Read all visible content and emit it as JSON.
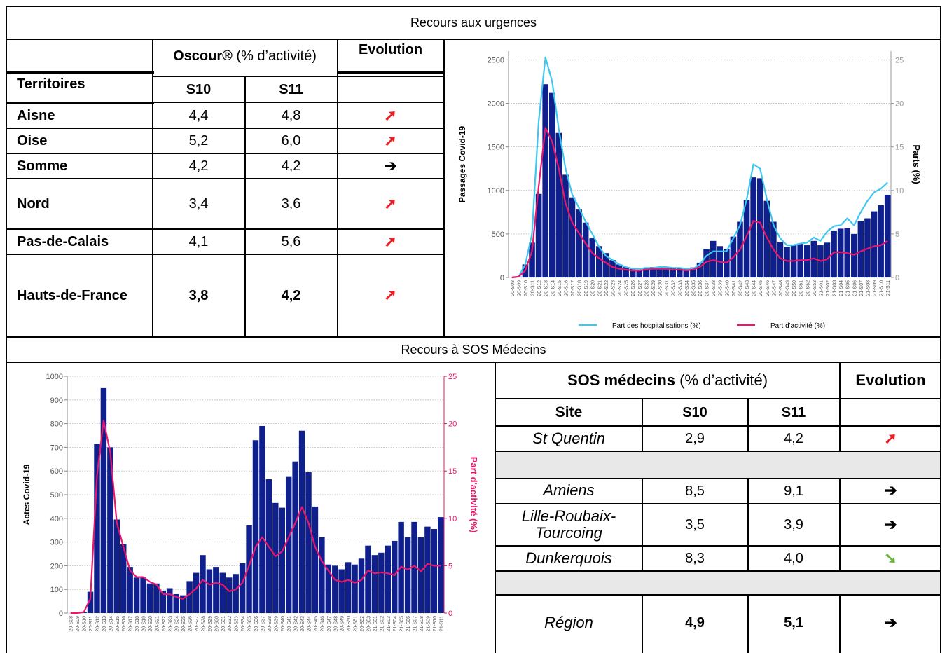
{
  "section_titles": {
    "urgences": "Recours aux urgences",
    "sos": "Recours à SOS Médecins"
  },
  "oscour_table": {
    "header_main_bold": "Oscour®",
    "header_main_rest": " (% d’activité)",
    "header_evolution": "Evolution",
    "col_territoires": "Territoires",
    "col_s10": "S10",
    "col_s11": "S11",
    "rows": [
      {
        "territoire": "Aisne",
        "s10": "4,4",
        "s11": "4,8",
        "evolution": "up",
        "evolution_symbol": "➚",
        "color": "#ee1c24"
      },
      {
        "territoire": "Oise",
        "s10": "5,2",
        "s11": "6,0",
        "evolution": "up",
        "evolution_symbol": "➚",
        "color": "#ee1c24"
      },
      {
        "territoire": "Somme",
        "s10": "4,2",
        "s11": "4,2",
        "evolution": "stable",
        "evolution_symbol": "➔",
        "color": "#000000"
      },
      {
        "territoire": "Nord",
        "s10": "3,4",
        "s11": "3,6",
        "evolution": "up",
        "evolution_symbol": "➚",
        "color": "#ee1c24"
      },
      {
        "territoire": "Pas-de-Calais",
        "s10": "4,1",
        "s11": "5,6",
        "evolution": "up",
        "evolution_symbol": "➚",
        "color": "#ee1c24"
      },
      {
        "territoire": "Hauts-de-France",
        "s10": "3,8",
        "s11": "4,2",
        "evolution": "up",
        "evolution_symbol": "➚",
        "color": "#ee1c24"
      }
    ]
  },
  "sos_table": {
    "header_main_bold": "SOS médecins",
    "header_main_rest": " (% d’activité)",
    "header_evolution": "Evolution",
    "col_site": "Site",
    "col_s10": "S10",
    "col_s11": "S11",
    "rows": [
      {
        "site": "St Quentin",
        "s10": "2,9",
        "s11": "4,2",
        "evolution": "up",
        "evolution_symbol": "➚",
        "color": "#ee1c24"
      },
      {
        "site": "Amiens",
        "s10": "8,5",
        "s11": "9,1",
        "evolution": "stable",
        "evolution_symbol": "➔",
        "color": "#000000"
      },
      {
        "site_line1": "Lille-Roubaix-",
        "site_line2": "Tourcoing",
        "s10": "3,5",
        "s11": "3,9",
        "evolution": "stable",
        "evolution_symbol": "➔",
        "color": "#000000"
      },
      {
        "site": "Dunkerquois",
        "s10": "8,3",
        "s11": "4,0",
        "evolution": "down",
        "evolution_symbol": "➘",
        "color": "#6db33f"
      },
      {
        "site": "Région",
        "s10": "4,9",
        "s11": "5,1",
        "evolution": "stable",
        "evolution_symbol": "➔",
        "color": "#000000"
      }
    ]
  },
  "colors": {
    "bar": "#0f1f8c",
    "line_hosp": "#3ec6f0",
    "line_activite": "#e8176b",
    "grid": "#b3b3b3"
  },
  "chart_data": [
    {
      "type": "bar",
      "id": "urgences",
      "ylabel": "Passages Covid-19",
      "y2label": "Parts (%)",
      "ylim": [
        0,
        2600
      ],
      "y2lim": [
        0,
        26
      ],
      "yticks": [
        0,
        500,
        1000,
        1500,
        2000,
        2500
      ],
      "y2ticks": [
        0,
        5,
        10,
        15,
        20,
        25
      ],
      "grid": true,
      "legend_position": "bottom",
      "categories": [
        "20-S08",
        "20-S09",
        "20-S10",
        "20-S11",
        "20-S12",
        "20-S13",
        "20-S14",
        "20-S15",
        "20-S16",
        "20-S17",
        "20-S18",
        "20-S19",
        "20-S20",
        "20-S21",
        "20-S22",
        "20-S23",
        "20-S24",
        "20-S25",
        "20-S26",
        "20-S27",
        "20-S28",
        "20-S29",
        "20-S30",
        "20-S31",
        "20-S32",
        "20-S33",
        "20-S34",
        "20-S35",
        "20-S36",
        "20-S37",
        "20-S38",
        "20-S39",
        "20-S40",
        "20-S41",
        "20-S42",
        "20-S43",
        "20-S44",
        "20-S45",
        "20-S46",
        "20-S47",
        "20-S48",
        "20-S49",
        "20-S50",
        "20-S51",
        "20-S52",
        "20-S53",
        "21-S01",
        "21-S02",
        "21-S03",
        "21-S04",
        "21-S05",
        "21-S06",
        "21-S07",
        "21-S08",
        "21-S09",
        "21-S10",
        "21-S11"
      ],
      "tick_labels": [
        "20-S08",
        "20-S09",
        "20-S10",
        "20-S11",
        "20-S12",
        "20-S13",
        "20-S14",
        "20-S15",
        "20-S16",
        "20-S17",
        "20-S18",
        "20-S19",
        "20-S20",
        "20-S21",
        "20-S22",
        "20-S23",
        "20-S24",
        "20-S25",
        "20-S26",
        "20-S27",
        "20-S28",
        "20-S29",
        "20-S30",
        "20-S31",
        "20-S32",
        "20-S33",
        "20-S34",
        "20-S35",
        "20-S36",
        "20-S37",
        "20-S38",
        "20-S39",
        "20-S40",
        "20-S41",
        "20-S42",
        "20-S43",
        "20-S44",
        "20-S45",
        "20-S46",
        "20-S47",
        "20-S48",
        "20-S49",
        "20-S50",
        "20-S51",
        "20-S52",
        "20-S53",
        "21-S01",
        "21-S02",
        "21-S03",
        "21-S04",
        "21-S05",
        "21-S06",
        "21-S07",
        "21-S08",
        "21-S09",
        "21-S10",
        "21-S11"
      ],
      "bars": [
        0,
        10,
        150,
        400,
        960,
        2220,
        2120,
        1660,
        1180,
        920,
        780,
        630,
        450,
        360,
        280,
        200,
        150,
        120,
        100,
        90,
        110,
        120,
        120,
        110,
        115,
        110,
        100,
        115,
        170,
        330,
        420,
        360,
        330,
        470,
        640,
        890,
        1150,
        1140,
        880,
        640,
        410,
        350,
        370,
        390,
        370,
        420,
        370,
        400,
        540,
        560,
        570,
        500,
        650,
        680,
        760,
        830,
        950
      ],
      "series": [
        {
          "name": "Part des hospitalisations (%)",
          "axis": "right",
          "values": [
            0,
            0.1,
            1.5,
            5.0,
            18.0,
            25.3,
            22.5,
            17.0,
            12.5,
            9.5,
            8.0,
            6.4,
            5.0,
            3.5,
            2.5,
            2.0,
            1.5,
            1.2,
            1.0,
            1.0,
            1.1,
            1.1,
            1.2,
            1.2,
            1.1,
            1.1,
            1.0,
            1.0,
            1.5,
            2.5,
            3.0,
            3.0,
            3.0,
            4.5,
            6.0,
            9.0,
            13.0,
            12.5,
            9.0,
            6.0,
            4.5,
            3.7,
            3.7,
            3.9,
            4.0,
            4.6,
            4.2,
            5.3,
            5.9,
            6.0,
            6.8,
            6.0,
            7.5,
            8.8,
            9.8,
            10.2,
            10.9
          ]
        },
        {
          "name": "Part d'activité (%)",
          "axis": "right",
          "values": [
            0,
            0.1,
            0.8,
            3.0,
            10.5,
            17.2,
            15.6,
            12.5,
            8.5,
            6.3,
            5.1,
            3.9,
            2.8,
            2.2,
            1.7,
            1.2,
            1.0,
            0.9,
            0.8,
            0.8,
            0.9,
            1.0,
            1.0,
            1.0,
            0.9,
            0.9,
            0.8,
            0.9,
            1.2,
            1.8,
            2.0,
            1.8,
            1.7,
            2.3,
            3.2,
            4.8,
            6.5,
            6.3,
            4.6,
            3.2,
            2.2,
            1.9,
            1.9,
            2.0,
            2.0,
            2.2,
            1.9,
            2.1,
            2.9,
            2.9,
            2.8,
            2.6,
            3.0,
            3.3,
            3.6,
            3.7,
            4.2
          ]
        }
      ]
    },
    {
      "type": "bar",
      "id": "sos",
      "ylabel": "Actes Covid-19",
      "y2label": "Part d'activité (%)",
      "ylim": [
        0,
        1000
      ],
      "y2lim": [
        0,
        25
      ],
      "yticks": [
        0,
        100,
        200,
        300,
        400,
        500,
        600,
        700,
        800,
        900,
        1000
      ],
      "y2ticks": [
        0,
        5,
        10,
        15,
        20,
        25
      ],
      "grid": true,
      "categories": [
        "20-S08",
        "20-S09",
        "20-S10",
        "20-S11",
        "20-S12",
        "20-S13",
        "20-S14",
        "20-S15",
        "20-S16",
        "20-S17",
        "20-S18",
        "20-S19",
        "20-S20",
        "20-S21",
        "20-S22",
        "20-S23",
        "20-S24",
        "20-S25",
        "20-S26",
        "20-S27",
        "20-S28",
        "20-S29",
        "20-S30",
        "20-S31",
        "20-S32",
        "20-S33",
        "20-S34",
        "20-S35",
        "20-S36",
        "20-S37",
        "20-S38",
        "20-S39",
        "20-S40",
        "20-S41",
        "20-S42",
        "20-S43",
        "20-S44",
        "20-S45",
        "20-S46",
        "20-S47",
        "20-S48",
        "20-S49",
        "20-S50",
        "20-S51",
        "20-S52",
        "20-S53",
        "21-S01",
        "21-S02",
        "21-S03",
        "21-S04",
        "21-S05",
        "21-S06",
        "21-S07",
        "21-S08",
        "21-S09",
        "21-S10",
        "21-S11"
      ],
      "tick_labels": [
        "20-S08",
        "20-S09",
        "20-S10",
        "20-S11",
        "20-S12",
        "20-S13",
        "20-S14",
        "20-S15",
        "20-S16",
        "20-S17",
        "20-S18",
        "20-S19",
        "20-S20",
        "20-S21",
        "20-S22",
        "20-S23",
        "20-S24",
        "20-S25",
        "20-S26",
        "20-S27",
        "20-S28",
        "20-S29",
        "20-S30",
        "20-S31",
        "20-S32",
        "20-S33",
        "20-S34",
        "20-S35",
        "20-S36",
        "20-S37",
        "20-S38",
        "20-S39",
        "20-S40",
        "20-S41",
        "20-S42",
        "20-S43",
        "20-S44",
        "20-S45",
        "20-S46",
        "20-S47",
        "20-S48",
        "20-S49",
        "20-S50",
        "20-S51",
        "20-S52",
        "20-S53",
        "21-S01",
        "21-S02",
        "21-S03",
        "21-S04",
        "21-S05",
        "21-S06",
        "21-S07",
        "21-S08",
        "21-S09",
        "21-S10",
        "21-S11"
      ],
      "bars": [
        0,
        0,
        5,
        90,
        715,
        950,
        700,
        395,
        290,
        195,
        150,
        150,
        125,
        125,
        95,
        105,
        80,
        75,
        135,
        170,
        245,
        185,
        195,
        170,
        150,
        165,
        210,
        370,
        730,
        790,
        565,
        465,
        445,
        575,
        640,
        770,
        595,
        450,
        320,
        205,
        200,
        185,
        215,
        205,
        230,
        285,
        245,
        255,
        285,
        305,
        385,
        320,
        385,
        320,
        365,
        355,
        405
      ],
      "series": [
        {
          "name": "Part d'activité (%)",
          "axis": "right",
          "values": [
            0,
            0,
            0.1,
            1.5,
            14.5,
            20.3,
            17.0,
            9.5,
            7.0,
            4.5,
            3.8,
            3.8,
            3.3,
            3.0,
            2.0,
            2.0,
            1.7,
            1.5,
            2.0,
            2.6,
            3.5,
            3.0,
            3.2,
            3.0,
            2.3,
            2.5,
            3.2,
            5.0,
            7.0,
            8.0,
            7.0,
            6.0,
            6.5,
            8.0,
            9.5,
            11.2,
            9.5,
            7.0,
            5.5,
            4.5,
            3.5,
            3.3,
            3.5,
            3.2,
            3.5,
            4.5,
            4.2,
            4.3,
            4.2,
            4.0,
            4.9,
            4.6,
            5.0,
            4.4,
            5.2,
            5.0,
            5.0
          ]
        }
      ]
    }
  ]
}
